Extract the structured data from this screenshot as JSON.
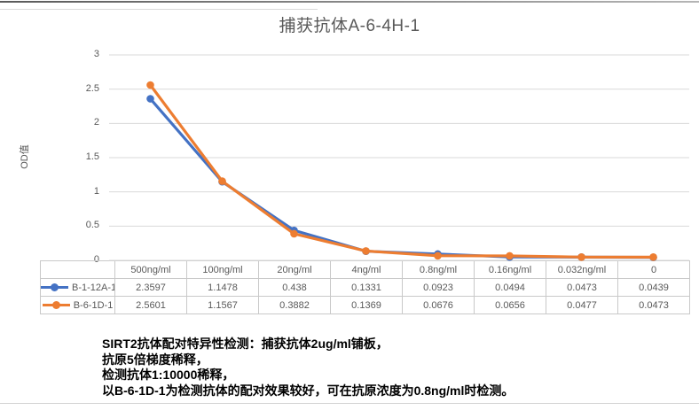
{
  "chart_data": {
    "type": "line",
    "title": "捕获抗体A-6-4H-1",
    "ylabel": "OD值",
    "xlabel": "",
    "categories": [
      "500ng/ml",
      "100ng/ml",
      "20ng/ml",
      "4ng/ml",
      "0.8ng/ml",
      "0.16ng/ml",
      "0.032ng/ml",
      "0"
    ],
    "series": [
      {
        "name": "B-1-12A-1",
        "color": "#4472C4",
        "values": [
          2.3597,
          1.1478,
          0.438,
          0.1331,
          0.0923,
          0.0494,
          0.0473,
          0.0439
        ]
      },
      {
        "name": "B-6-1D-1",
        "color": "#ED7D31",
        "values": [
          2.5601,
          1.1567,
          0.3882,
          0.1369,
          0.0676,
          0.0656,
          0.0477,
          0.0473
        ]
      }
    ],
    "ylim": [
      0,
      3
    ],
    "yticks": [
      0,
      0.5,
      1,
      1.5,
      2,
      2.5,
      3
    ],
    "grid": true,
    "legend_position": "data-table-left",
    "marker": "circle"
  },
  "annotation": {
    "lines": [
      "SIRT2抗体配对特异性检测：捕获抗体2ug/ml铺板，",
      "抗原5倍梯度稀释，",
      "检测抗体1:10000稀释，",
      "以B-6-1D-1为检测抗体的配对效果较好，可在抗原浓度为0.8ng/ml时检测。"
    ]
  },
  "colors": {
    "series_blue": "#4472C4",
    "series_orange": "#ED7D31",
    "gridline": "#D9D9D9",
    "table_border": "#C9C9C9",
    "axis_text": "#595959",
    "title_text": "#595959",
    "annotation_text": "#000000"
  }
}
